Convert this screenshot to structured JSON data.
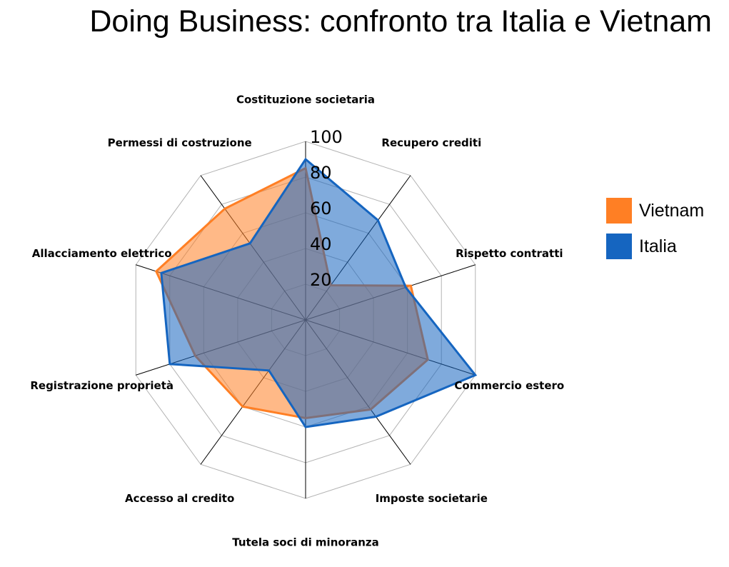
{
  "chart_data": {
    "type": "radar",
    "title": "Doing Business: confronto tra Italia e Vietnam",
    "categories": [
      "Costituzione societaria",
      "Recupero crediti",
      "Rispetto contratti",
      "Commercio estero",
      "Imposte societarie",
      "Tutela soci di minoranza",
      "Accesso al credito",
      "Registrazione proprietà",
      "Allacciamento elettrico",
      "Permessi di costruzione"
    ],
    "radial_ticks": [
      "20",
      "40",
      "60",
      "80",
      "100"
    ],
    "rlim": [
      0,
      100
    ],
    "grid": true,
    "legend": "right",
    "series": [
      {
        "name": "Vietnam",
        "color": "#ff7f24",
        "values": [
          85,
          24,
          62,
          72,
          62,
          55,
          60,
          65,
          88,
          77
        ]
      },
      {
        "name": "Italia",
        "color": "#1565c0",
        "values": [
          90,
          69,
          59,
          100,
          67,
          60,
          35,
          80,
          85,
          53
        ]
      }
    ]
  }
}
